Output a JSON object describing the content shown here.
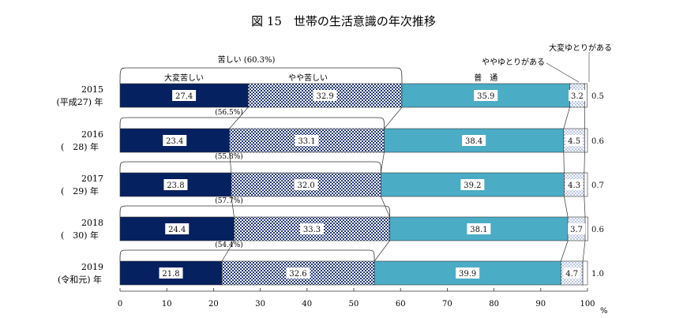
{
  "chart_data": {
    "type": "bar",
    "orientation": "horizontal",
    "stacked": true,
    "title": "図 15　世帯の生活意識の年次推移",
    "unit": "%",
    "xlim": [
      0,
      100
    ],
    "xticks": [
      0,
      10,
      20,
      30,
      40,
      50,
      60,
      70,
      80,
      90,
      100
    ],
    "legend_position": "top",
    "categories": [
      {
        "year": "2015",
        "era": "(平成27) 年"
      },
      {
        "year": "2016",
        "era": "(　28) 年"
      },
      {
        "year": "2017",
        "era": "(　29) 年"
      },
      {
        "year": "2018",
        "era": "(　30) 年"
      },
      {
        "year": "2019",
        "era": "(令和元) 年"
      }
    ],
    "series": [
      {
        "name": "大変苦しい",
        "color": "#06215f",
        "pattern": "solid",
        "values": [
          27.4,
          23.4,
          23.8,
          24.4,
          21.8
        ]
      },
      {
        "name": "やや苦しい",
        "color": "#2b3f86",
        "pattern": "checker",
        "values": [
          32.9,
          33.1,
          32.0,
          33.3,
          32.6
        ]
      },
      {
        "name": "普　通",
        "color": "#4bacc6",
        "pattern": "solid",
        "values": [
          35.9,
          38.4,
          39.2,
          38.1,
          39.9
        ]
      },
      {
        "name": "ややゆとりがある",
        "color": "#4f6fb8",
        "pattern": "dots",
        "values": [
          3.2,
          4.5,
          4.3,
          3.7,
          4.7
        ]
      },
      {
        "name": "大変ゆとりがある",
        "color": "#ffffff",
        "pattern": "none",
        "values": [
          0.5,
          0.6,
          0.7,
          0.6,
          1.0
        ]
      }
    ],
    "value_labels": [
      [
        "27.4",
        "32.9",
        "35.9",
        "3.2",
        "0.5"
      ],
      [
        "23.4",
        "33.1",
        "38.4",
        "4.5",
        "0.6"
      ],
      [
        "23.8",
        "32.0",
        "39.2",
        "4.3",
        "0.7"
      ],
      [
        "24.4",
        "33.3",
        "38.1",
        "3.7",
        "0.6"
      ],
      [
        "21.8",
        "32.6",
        "39.9",
        "4.7",
        "1.0"
      ]
    ],
    "difficult_total_label": "苦しい (60.3%)",
    "difficult_totals": [
      "",
      "(56.5%)",
      "(55.8%)",
      "(57.7%)",
      "(54.4%)"
    ]
  }
}
